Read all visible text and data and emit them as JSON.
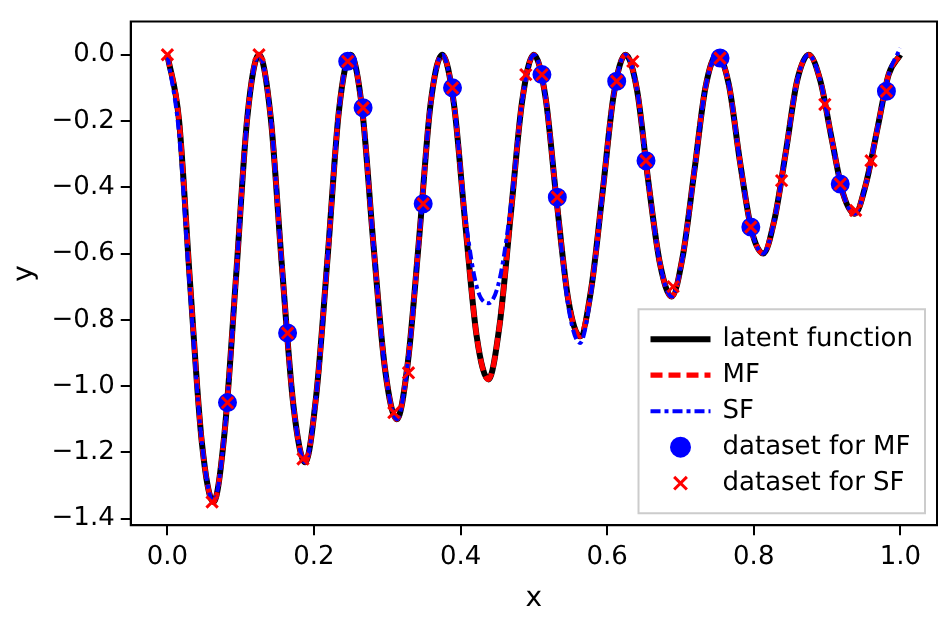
{
  "chart_data": {
    "type": "line",
    "xlabel": "x",
    "ylabel": "y",
    "grid": false,
    "legend": "bottom right",
    "xlim": [
      -0.05,
      1.05
    ],
    "ylim": [
      -1.42,
      0.1
    ],
    "xticks": [
      {
        "value": 0,
        "label": "0.0"
      },
      {
        "value": 0.2,
        "label": "0.2"
      },
      {
        "value": 0.4,
        "label": "0.4"
      },
      {
        "value": 0.6,
        "label": "0.6"
      },
      {
        "value": 0.8,
        "label": "0.8"
      },
      {
        "value": 1,
        "label": "1.0"
      }
    ],
    "yticks": [
      {
        "value": 0,
        "label": "0.0"
      },
      {
        "value": -0.2,
        "label": "−0.2"
      },
      {
        "value": -0.4,
        "label": "−0.4"
      },
      {
        "value": -0.6,
        "label": "−0.6"
      },
      {
        "value": -0.8,
        "label": "−0.8"
      },
      {
        "value": -1,
        "label": "−1.0"
      },
      {
        "value": -1.2,
        "label": "−1.2"
      },
      {
        "value": -1.4,
        "label": "−1.4"
      }
    ],
    "x": [
      0,
      0.016,
      0.031,
      0.047,
      0.063,
      0.078,
      0.094,
      0.109,
      0.125,
      0.141,
      0.156,
      0.172,
      0.188,
      0.203,
      0.219,
      0.234,
      0.25,
      0.266,
      0.281,
      0.297,
      0.313,
      0.328,
      0.344,
      0.359,
      0.375,
      0.391,
      0.406,
      0.422,
      0.438,
      0.453,
      0.469,
      0.484,
      0.5,
      0.516,
      0.531,
      0.547,
      0.563,
      0.578,
      0.594,
      0.609,
      0.625,
      0.641,
      0.656,
      0.672,
      0.688,
      0.703,
      0.719,
      0.734,
      0.75,
      0.766,
      0.781,
      0.797,
      0.813,
      0.828,
      0.844,
      0.859,
      0.875,
      0.891,
      0.906,
      0.922,
      0.938,
      0.953,
      0.969,
      0.984,
      1.0
    ],
    "series": [
      {
        "name": "latent function",
        "type": "line",
        "color": "#000000",
        "line_style": "solid",
        "marker": "none",
        "values": [
          0,
          -0.2,
          -0.69,
          -1.17,
          -1.35,
          -1.14,
          -0.66,
          -0.19,
          0,
          -0.19,
          -0.63,
          -1.06,
          -1.23,
          -1.03,
          -0.6,
          -0.17,
          0,
          -0.17,
          -0.57,
          -0.95,
          -1.1,
          -0.93,
          -0.54,
          -0.15,
          0,
          -0.15,
          -0.5,
          -0.85,
          -0.98,
          -0.82,
          -0.47,
          -0.14,
          0,
          -0.13,
          -0.44,
          -0.74,
          -0.85,
          -0.71,
          -0.41,
          -0.12,
          0,
          -0.11,
          -0.38,
          -0.63,
          -0.73,
          -0.61,
          -0.35,
          -0.1,
          0,
          -0.09,
          -0.32,
          -0.53,
          -0.6,
          -0.5,
          -0.29,
          -0.08,
          0,
          -0.08,
          -0.25,
          -0.42,
          -0.48,
          -0.39,
          -0.22,
          -0.06,
          0
        ]
      },
      {
        "name": "MF",
        "type": "line",
        "color": "#ff0000",
        "line_style": "dashed",
        "marker": "none",
        "values": [
          0,
          -0.2,
          -0.69,
          -1.17,
          -1.35,
          -1.14,
          -0.66,
          -0.19,
          0,
          -0.19,
          -0.63,
          -1.06,
          -1.23,
          -1.03,
          -0.6,
          -0.17,
          0,
          -0.17,
          -0.57,
          -0.95,
          -1.1,
          -0.93,
          -0.54,
          -0.15,
          0,
          -0.15,
          -0.5,
          -0.85,
          -0.98,
          -0.82,
          -0.47,
          -0.14,
          0,
          -0.13,
          -0.44,
          -0.74,
          -0.85,
          -0.71,
          -0.41,
          -0.12,
          0,
          -0.11,
          -0.38,
          -0.63,
          -0.73,
          -0.61,
          -0.35,
          -0.1,
          0,
          -0.09,
          -0.32,
          -0.53,
          -0.6,
          -0.5,
          -0.29,
          -0.08,
          0,
          -0.08,
          -0.25,
          -0.42,
          -0.48,
          -0.39,
          -0.22,
          -0.06,
          0
        ]
      },
      {
        "name": "SF",
        "type": "line",
        "color": "#0000ff",
        "line_style": "dashdot",
        "marker": "none",
        "values": [
          0,
          -0.24,
          -0.72,
          -1.17,
          -1.35,
          -1.14,
          -0.66,
          -0.19,
          0,
          -0.19,
          -0.63,
          -1.06,
          -1.23,
          -1.03,
          -0.6,
          -0.17,
          0,
          -0.17,
          -0.57,
          -0.95,
          -1.1,
          -0.93,
          -0.54,
          -0.15,
          0,
          -0.15,
          -0.48,
          -0.7,
          -0.75,
          -0.68,
          -0.45,
          -0.14,
          0,
          -0.13,
          -0.44,
          -0.76,
          -0.87,
          -0.72,
          -0.41,
          -0.12,
          0,
          -0.11,
          -0.38,
          -0.63,
          -0.73,
          -0.61,
          -0.35,
          -0.1,
          0,
          -0.09,
          -0.32,
          -0.53,
          -0.6,
          -0.5,
          -0.29,
          -0.08,
          0,
          -0.08,
          -0.25,
          -0.42,
          -0.48,
          -0.39,
          -0.22,
          -0.06,
          0.02
        ]
      },
      {
        "name": "dataset for MF",
        "type": "scatter",
        "color": "#0000ff",
        "marker": "circle",
        "x": [
          0.082,
          0.164,
          0.246,
          0.267,
          0.349,
          0.389,
          0.511,
          0.532,
          0.613,
          0.653,
          0.754,
          0.796,
          0.918,
          0.981
        ],
        "values": [
          -1.05,
          -0.84,
          -0.02,
          -0.16,
          -0.45,
          -0.1,
          -0.06,
          -0.43,
          -0.08,
          -0.32,
          -0.01,
          -0.52,
          -0.39,
          -0.11
        ]
      },
      {
        "name": "dataset for SF",
        "type": "scatter",
        "color": "#ff0000",
        "marker": "cross",
        "x": [
          0,
          0.061,
          0.082,
          0.125,
          0.164,
          0.185,
          0.246,
          0.267,
          0.309,
          0.329,
          0.349,
          0.389,
          0.489,
          0.511,
          0.532,
          0.613,
          0.635,
          0.653,
          0.69,
          0.754,
          0.796,
          0.838,
          0.897,
          0.918,
          0.939,
          0.96,
          0.981
        ],
        "values": [
          0,
          -1.35,
          -1.05,
          0,
          -0.84,
          -1.22,
          -0.02,
          -0.16,
          -1.08,
          -0.96,
          -0.45,
          -0.1,
          -0.06,
          -0.06,
          -0.43,
          -0.08,
          -0.02,
          -0.32,
          -0.7,
          -0.01,
          -0.52,
          -0.38,
          -0.15,
          -0.39,
          -0.47,
          -0.32,
          -0.11
        ]
      }
    ]
  }
}
